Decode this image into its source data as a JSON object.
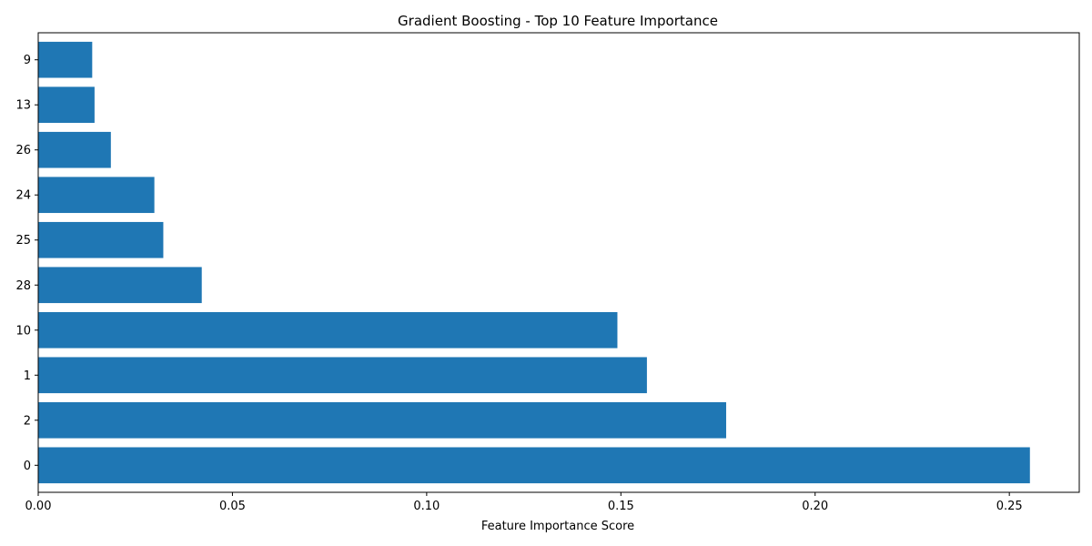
{
  "chart_data": {
    "type": "bar",
    "orientation": "horizontal",
    "title": "Gradient Boosting - Top 10 Feature Importance",
    "xlabel": "Feature Importance Score",
    "ylabel": "",
    "categories": [
      "0",
      "2",
      "1",
      "10",
      "28",
      "25",
      "24",
      "26",
      "13",
      "9"
    ],
    "values": [
      0.2553,
      0.1771,
      0.1567,
      0.1491,
      0.0421,
      0.0322,
      0.0299,
      0.0187,
      0.0145,
      0.0139
    ],
    "xlim": [
      0,
      0.268
    ],
    "xticks": [
      0.0,
      0.05,
      0.1,
      0.15,
      0.2,
      0.25
    ],
    "xtick_labels": [
      "0.00",
      "0.05",
      "0.10",
      "0.15",
      "0.20",
      "0.25"
    ],
    "bar_color": "#1f77b4",
    "grid": false,
    "legend": "none"
  }
}
